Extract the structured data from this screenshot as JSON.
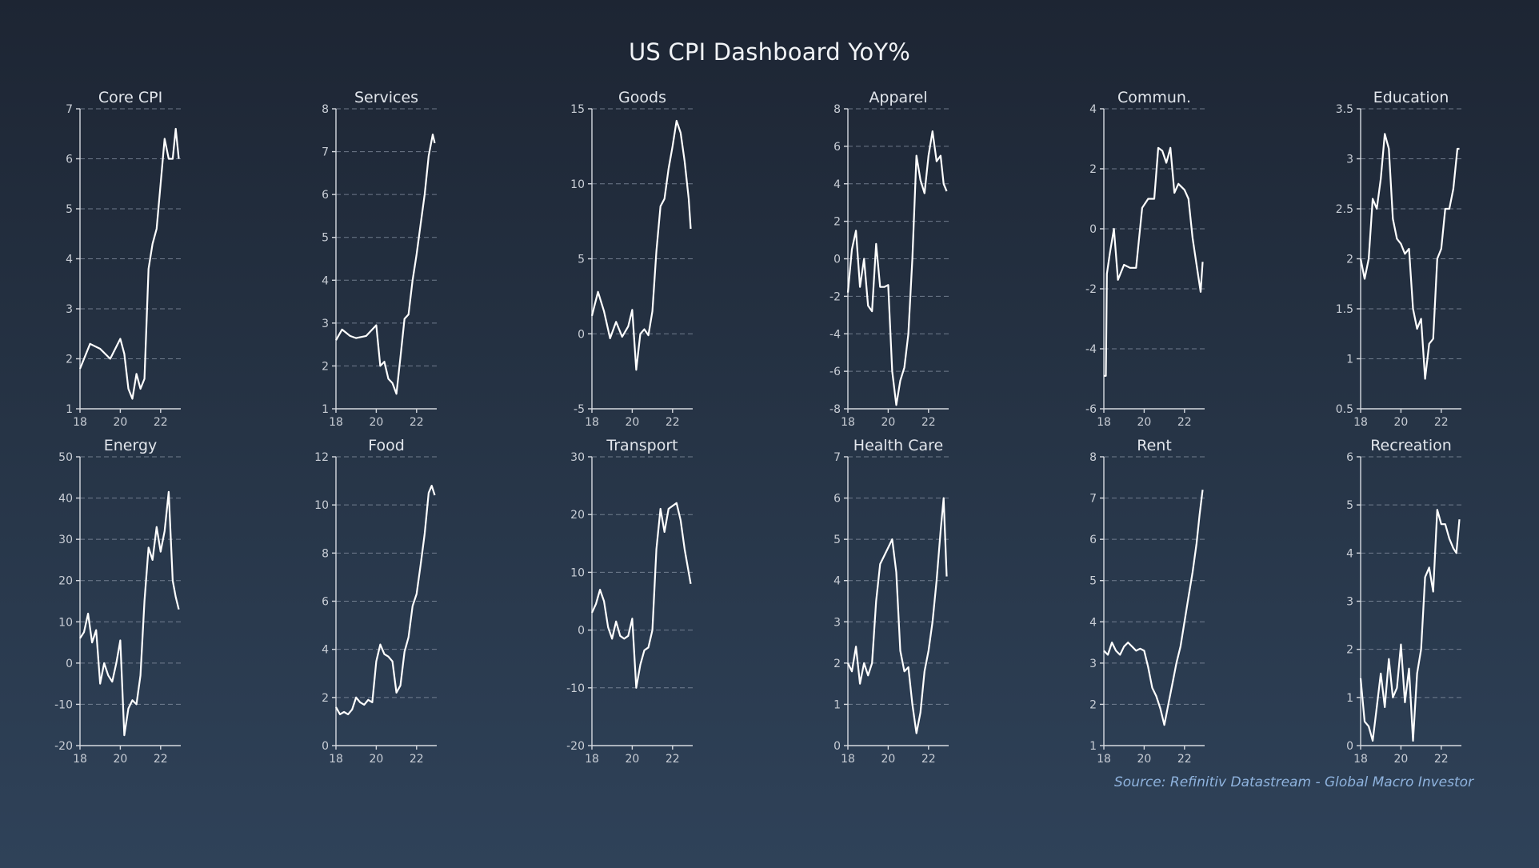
{
  "title": "US CPI Dashboard YoY%",
  "source": "Source: Refinitiv Datastream - Global Macro Investor",
  "colors": {
    "line": "#ffffff",
    "grid": "#8a95a6",
    "axis": "#d6dae0",
    "source": "#8fb3de"
  },
  "chart_data": [
    {
      "type": "line",
      "title": "Core CPI",
      "ylim": [
        1,
        7
      ],
      "yticks": [
        1,
        2,
        3,
        4,
        5,
        6,
        7
      ],
      "xticks": [
        "18",
        "20",
        "22"
      ],
      "grid": true,
      "x": [
        2018.0,
        2018.5,
        2019.0,
        2019.5,
        2020.0,
        2020.2,
        2020.4,
        2020.6,
        2020.8,
        2021.0,
        2021.2,
        2021.4,
        2021.6,
        2021.8,
        2022.0,
        2022.2,
        2022.4,
        2022.6,
        2022.75,
        2022.9
      ],
      "y": [
        1.8,
        2.3,
        2.2,
        2.0,
        2.4,
        2.1,
        1.4,
        1.2,
        1.7,
        1.4,
        1.6,
        3.8,
        4.3,
        4.6,
        5.5,
        6.4,
        6.0,
        6.0,
        6.6,
        6.0
      ]
    },
    {
      "type": "line",
      "title": "Services",
      "ylim": [
        1,
        8
      ],
      "yticks": [
        1,
        2,
        3,
        4,
        5,
        6,
        7,
        8
      ],
      "xticks": [
        "18",
        "20",
        "22"
      ],
      "grid": true,
      "x": [
        2018.0,
        2018.3,
        2018.7,
        2019.0,
        2019.5,
        2020.0,
        2020.2,
        2020.4,
        2020.6,
        2020.8,
        2021.0,
        2021.2,
        2021.4,
        2021.6,
        2021.8,
        2022.0,
        2022.2,
        2022.4,
        2022.6,
        2022.8,
        2022.9
      ],
      "y": [
        2.6,
        2.85,
        2.7,
        2.65,
        2.7,
        2.95,
        2.0,
        2.1,
        1.7,
        1.6,
        1.35,
        2.2,
        3.1,
        3.2,
        4.0,
        4.6,
        5.3,
        6.0,
        6.9,
        7.4,
        7.2
      ]
    },
    {
      "type": "line",
      "title": "Goods",
      "ylim": [
        -5,
        15
      ],
      "yticks": [
        -5,
        0,
        5,
        10,
        15
      ],
      "xticks": [
        "18",
        "20",
        "22"
      ],
      "grid": true,
      "x": [
        2018.0,
        2018.3,
        2018.6,
        2018.9,
        2019.2,
        2019.5,
        2019.8,
        2020.0,
        2020.2,
        2020.4,
        2020.6,
        2020.8,
        2021.0,
        2021.2,
        2021.4,
        2021.6,
        2021.8,
        2022.0,
        2022.2,
        2022.4,
        2022.6,
        2022.8,
        2022.9
      ],
      "y": [
        1.2,
        2.8,
        1.5,
        -0.3,
        0.8,
        -0.2,
        0.5,
        1.6,
        -2.4,
        0.0,
        0.3,
        -0.1,
        1.5,
        5.5,
        8.5,
        9.0,
        11.0,
        12.5,
        14.2,
        13.4,
        11.5,
        9.0,
        7.0
      ]
    },
    {
      "type": "line",
      "title": "Apparel",
      "ylim": [
        -8,
        8
      ],
      "yticks": [
        -8,
        -6,
        -4,
        -2,
        0,
        2,
        4,
        6,
        8
      ],
      "xticks": [
        "18",
        "20",
        "22"
      ],
      "grid": true,
      "x": [
        2018.0,
        2018.2,
        2018.4,
        2018.6,
        2018.8,
        2019.0,
        2019.2,
        2019.4,
        2019.6,
        2019.8,
        2020.0,
        2020.2,
        2020.4,
        2020.6,
        2020.8,
        2021.0,
        2021.2,
        2021.4,
        2021.6,
        2021.8,
        2022.0,
        2022.2,
        2022.4,
        2022.6,
        2022.75,
        2022.9
      ],
      "y": [
        -1.8,
        0.5,
        1.5,
        -1.5,
        0.0,
        -2.5,
        -2.8,
        0.8,
        -1.5,
        -1.5,
        -1.4,
        -6.0,
        -7.8,
        -6.5,
        -5.8,
        -4.0,
        0.0,
        5.5,
        4.2,
        3.5,
        5.5,
        6.8,
        5.2,
        5.5,
        4.0,
        3.6
      ]
    },
    {
      "type": "line",
      "title": "Commun.",
      "ylim": [
        -6,
        4
      ],
      "yticks": [
        -6,
        -4,
        -2,
        0,
        2,
        4
      ],
      "xticks": [
        "18",
        "20",
        "22"
      ],
      "grid": true,
      "x": [
        2018.0,
        2018.1,
        2018.15,
        2018.3,
        2018.5,
        2018.7,
        2019.0,
        2019.3,
        2019.6,
        2019.9,
        2020.2,
        2020.5,
        2020.7,
        2020.9,
        2021.1,
        2021.3,
        2021.5,
        2021.7,
        2022.0,
        2022.2,
        2022.4,
        2022.6,
        2022.8,
        2022.9
      ],
      "y": [
        -4.9,
        -4.9,
        -1.5,
        -0.8,
        0.0,
        -1.7,
        -1.2,
        -1.3,
        -1.3,
        0.7,
        1.0,
        1.0,
        2.7,
        2.6,
        2.2,
        2.7,
        1.2,
        1.5,
        1.3,
        1.0,
        -0.3,
        -1.2,
        -2.1,
        -1.1
      ]
    },
    {
      "type": "line",
      "title": "Education",
      "ylim": [
        0.5,
        3.5
      ],
      "yticks": [
        0.5,
        1.0,
        1.5,
        2.0,
        2.5,
        3.0,
        3.5
      ],
      "xticks": [
        "18",
        "20",
        "22"
      ],
      "grid": true,
      "x": [
        2018.0,
        2018.2,
        2018.4,
        2018.6,
        2018.8,
        2019.0,
        2019.2,
        2019.4,
        2019.6,
        2019.8,
        2020.0,
        2020.2,
        2020.4,
        2020.6,
        2020.8,
        2021.0,
        2021.2,
        2021.4,
        2021.6,
        2021.8,
        2022.0,
        2022.2,
        2022.4,
        2022.6,
        2022.8,
        2022.9
      ],
      "y": [
        2.0,
        1.8,
        2.0,
        2.6,
        2.5,
        2.8,
        3.25,
        3.1,
        2.4,
        2.2,
        2.15,
        2.05,
        2.1,
        1.5,
        1.3,
        1.4,
        0.8,
        1.15,
        1.2,
        2.0,
        2.1,
        2.5,
        2.5,
        2.7,
        3.1,
        3.1
      ]
    },
    {
      "type": "line",
      "title": "Energy",
      "ylim": [
        -20,
        50
      ],
      "yticks": [
        -20,
        -10,
        0,
        10,
        20,
        30,
        40,
        50
      ],
      "xticks": [
        "18",
        "20",
        "22"
      ],
      "grid": true,
      "x": [
        2018.0,
        2018.2,
        2018.4,
        2018.6,
        2018.8,
        2019.0,
        2019.2,
        2019.4,
        2019.6,
        2019.8,
        2020.0,
        2020.2,
        2020.4,
        2020.6,
        2020.8,
        2021.0,
        2021.2,
        2021.4,
        2021.6,
        2021.8,
        2022.0,
        2022.2,
        2022.4,
        2022.6,
        2022.75,
        2022.9
      ],
      "y": [
        6.0,
        7.5,
        12.0,
        5.0,
        8.0,
        -5.0,
        0.0,
        -3.0,
        -4.5,
        0.0,
        5.5,
        -17.5,
        -11.0,
        -9.0,
        -10.0,
        -3.0,
        15.0,
        28.0,
        25.0,
        33.0,
        27.0,
        32.0,
        41.5,
        20.0,
        16.0,
        13.0
      ]
    },
    {
      "type": "line",
      "title": "Food",
      "ylim": [
        0,
        12
      ],
      "yticks": [
        0,
        2,
        4,
        6,
        8,
        10,
        12
      ],
      "xticks": [
        "18",
        "20",
        "22"
      ],
      "grid": true,
      "x": [
        2018.0,
        2018.2,
        2018.4,
        2018.6,
        2018.8,
        2019.0,
        2019.2,
        2019.4,
        2019.6,
        2019.8,
        2020.0,
        2020.2,
        2020.4,
        2020.6,
        2020.8,
        2021.0,
        2021.2,
        2021.4,
        2021.6,
        2021.8,
        2022.0,
        2022.2,
        2022.4,
        2022.6,
        2022.75,
        2022.9
      ],
      "y": [
        1.6,
        1.3,
        1.4,
        1.3,
        1.5,
        2.0,
        1.8,
        1.7,
        1.9,
        1.8,
        3.5,
        4.2,
        3.8,
        3.7,
        3.5,
        2.2,
        2.5,
        3.9,
        4.5,
        5.8,
        6.3,
        7.5,
        8.8,
        10.5,
        10.8,
        10.4
      ]
    },
    {
      "type": "line",
      "title": "Transport",
      "ylim": [
        -20,
        30
      ],
      "yticks": [
        -20,
        -10,
        0,
        10,
        20,
        30
      ],
      "xticks": [
        "18",
        "20",
        "22"
      ],
      "grid": true,
      "x": [
        2018.0,
        2018.2,
        2018.4,
        2018.6,
        2018.8,
        2019.0,
        2019.2,
        2019.4,
        2019.6,
        2019.8,
        2020.0,
        2020.2,
        2020.4,
        2020.6,
        2020.8,
        2021.0,
        2021.2,
        2021.4,
        2021.6,
        2021.8,
        2022.0,
        2022.2,
        2022.4,
        2022.6,
        2022.75,
        2022.9
      ],
      "y": [
        3.0,
        4.5,
        7.0,
        5.0,
        0.5,
        -1.5,
        1.5,
        -1.0,
        -1.5,
        -1.0,
        2.0,
        -10.0,
        -6.0,
        -3.5,
        -3.0,
        0.0,
        14.0,
        21.0,
        17.0,
        21.0,
        21.5,
        22.0,
        19.0,
        14.0,
        11.0,
        8.0
      ]
    },
    {
      "type": "line",
      "title": "Health Care",
      "ylim": [
        0,
        7
      ],
      "yticks": [
        0,
        1,
        2,
        3,
        4,
        5,
        6,
        7
      ],
      "xticks": [
        "18",
        "20",
        "22"
      ],
      "grid": true,
      "x": [
        2018.0,
        2018.2,
        2018.4,
        2018.6,
        2018.8,
        2019.0,
        2019.2,
        2019.4,
        2019.6,
        2019.8,
        2020.0,
        2020.2,
        2020.4,
        2020.6,
        2020.8,
        2021.0,
        2021.2,
        2021.4,
        2021.6,
        2021.8,
        2022.0,
        2022.2,
        2022.4,
        2022.6,
        2022.75,
        2022.9
      ],
      "y": [
        2.0,
        1.8,
        2.4,
        1.5,
        2.0,
        1.7,
        2.0,
        3.5,
        4.4,
        4.6,
        4.8,
        5.0,
        4.2,
        2.3,
        1.8,
        1.9,
        1.0,
        0.3,
        0.8,
        1.8,
        2.3,
        3.0,
        4.0,
        5.2,
        6.0,
        4.1
      ]
    },
    {
      "type": "line",
      "title": "Rent",
      "ylim": [
        1,
        8
      ],
      "yticks": [
        1,
        2,
        3,
        4,
        5,
        6,
        7,
        8
      ],
      "xticks": [
        "18",
        "20",
        "22"
      ],
      "grid": true,
      "x": [
        2018.0,
        2018.2,
        2018.4,
        2018.6,
        2018.8,
        2019.0,
        2019.2,
        2019.4,
        2019.6,
        2019.8,
        2020.0,
        2020.2,
        2020.4,
        2020.6,
        2020.8,
        2021.0,
        2021.2,
        2021.4,
        2021.6,
        2021.8,
        2022.0,
        2022.2,
        2022.4,
        2022.6,
        2022.75,
        2022.9
      ],
      "y": [
        3.3,
        3.2,
        3.5,
        3.3,
        3.2,
        3.4,
        3.5,
        3.4,
        3.3,
        3.35,
        3.3,
        2.9,
        2.4,
        2.2,
        1.9,
        1.5,
        2.0,
        2.5,
        3.0,
        3.4,
        4.0,
        4.6,
        5.2,
        5.9,
        6.6,
        7.2
      ]
    },
    {
      "type": "line",
      "title": "Recreation",
      "ylim": [
        0,
        6
      ],
      "yticks": [
        0,
        1,
        2,
        3,
        4,
        5,
        6
      ],
      "xticks": [
        "18",
        "20",
        "22"
      ],
      "grid": true,
      "x": [
        2018.0,
        2018.2,
        2018.4,
        2018.6,
        2018.8,
        2019.0,
        2019.2,
        2019.4,
        2019.6,
        2019.8,
        2020.0,
        2020.2,
        2020.4,
        2020.6,
        2020.8,
        2021.0,
        2021.2,
        2021.4,
        2021.6,
        2021.8,
        2022.0,
        2022.2,
        2022.4,
        2022.6,
        2022.75,
        2022.9
      ],
      "y": [
        1.4,
        0.5,
        0.4,
        0.1,
        0.8,
        1.5,
        0.8,
        1.8,
        1.0,
        1.2,
        2.1,
        0.9,
        1.6,
        0.1,
        1.5,
        2.0,
        3.5,
        3.7,
        3.2,
        4.9,
        4.6,
        4.6,
        4.3,
        4.1,
        4.0,
        4.7
      ]
    }
  ]
}
